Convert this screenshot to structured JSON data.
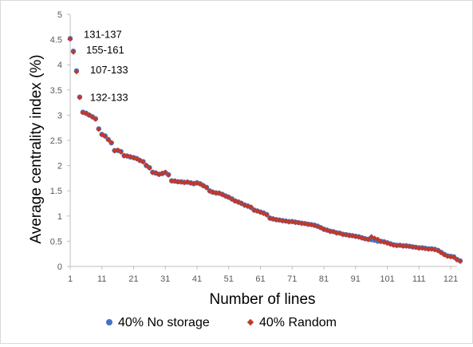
{
  "chart_data": {
    "type": "scatter",
    "xlabel": "Number  of lines",
    "ylabel": "Average centrality index (%)",
    "ylim": [
      0,
      5
    ],
    "xlim": [
      1,
      123
    ],
    "y_ticks": [
      "0",
      "0.5",
      "1",
      "1.5",
      "2",
      "2.5",
      "3",
      "3.5",
      "4",
      "4.5",
      "5"
    ],
    "x_ticks": [
      "1",
      "11",
      "21",
      "31",
      "41",
      "51",
      "61",
      "71",
      "81",
      "91",
      "101",
      "111",
      "121"
    ],
    "grid": false,
    "legend_position": "bottom",
    "annotations": [
      {
        "text": "131-137",
        "x": 1,
        "y": 4.52
      },
      {
        "text": "155-161",
        "x": 2,
        "y": 4.27
      },
      {
        "text": "107-133",
        "x": 3,
        "y": 3.88
      },
      {
        "text": "132-133",
        "x": 4,
        "y": 3.36
      }
    ],
    "series": [
      {
        "name": "40% No storage",
        "color": "#4472C4",
        "marker": "circle",
        "values": [
          4.52,
          4.27,
          3.88,
          3.36,
          3.06,
          3.04,
          3.0,
          2.97,
          2.93,
          2.73,
          2.62,
          2.59,
          2.52,
          2.45,
          2.3,
          2.3,
          2.28,
          2.2,
          2.19,
          2.17,
          2.16,
          2.14,
          2.1,
          2.08,
          2.0,
          1.96,
          1.87,
          1.85,
          1.83,
          1.84,
          1.86,
          1.82,
          1.7,
          1.69,
          1.68,
          1.68,
          1.67,
          1.67,
          1.66,
          1.64,
          1.66,
          1.64,
          1.6,
          1.57,
          1.5,
          1.47,
          1.46,
          1.45,
          1.43,
          1.4,
          1.37,
          1.34,
          1.3,
          1.28,
          1.25,
          1.22,
          1.2,
          1.17,
          1.12,
          1.1,
          1.08,
          1.06,
          1.03,
          0.96,
          0.94,
          0.93,
          0.92,
          0.91,
          0.9,
          0.89,
          0.89,
          0.88,
          0.87,
          0.86,
          0.85,
          0.84,
          0.83,
          0.82,
          0.8,
          0.77,
          0.74,
          0.72,
          0.7,
          0.69,
          0.67,
          0.66,
          0.64,
          0.63,
          0.62,
          0.61,
          0.6,
          0.59,
          0.57,
          0.55,
          0.54,
          0.53,
          0.52,
          0.5,
          0.5,
          0.49,
          0.47,
          0.45,
          0.43,
          0.42,
          0.42,
          0.41,
          0.41,
          0.4,
          0.39,
          0.38,
          0.37,
          0.37,
          0.36,
          0.35,
          0.35,
          0.34,
          0.32,
          0.28,
          0.24,
          0.21,
          0.2,
          0.19,
          0.14,
          0.11
        ]
      },
      {
        "name": "40% Random",
        "color": "#C0392B",
        "marker": "diamond",
        "values": [
          4.51,
          4.25,
          3.86,
          3.35,
          3.05,
          3.03,
          3.01,
          2.96,
          2.92,
          2.72,
          2.61,
          2.58,
          2.51,
          2.46,
          2.29,
          2.31,
          2.27,
          2.19,
          2.19,
          2.18,
          2.15,
          2.13,
          2.11,
          2.07,
          2.01,
          1.95,
          1.86,
          1.86,
          1.82,
          1.85,
          1.87,
          1.81,
          1.69,
          1.7,
          1.68,
          1.67,
          1.66,
          1.68,
          1.65,
          1.65,
          1.65,
          1.63,
          1.61,
          1.56,
          1.49,
          1.48,
          1.45,
          1.46,
          1.42,
          1.39,
          1.38,
          1.33,
          1.3,
          1.27,
          1.26,
          1.21,
          1.19,
          1.18,
          1.11,
          1.1,
          1.07,
          1.05,
          1.02,
          0.95,
          0.95,
          0.92,
          0.92,
          0.9,
          0.9,
          0.88,
          0.89,
          0.87,
          0.87,
          0.85,
          0.85,
          0.83,
          0.83,
          0.81,
          0.79,
          0.77,
          0.73,
          0.72,
          0.69,
          0.69,
          0.66,
          0.66,
          0.63,
          0.63,
          0.61,
          0.61,
          0.59,
          0.58,
          0.56,
          0.55,
          0.53,
          0.59,
          0.56,
          0.54,
          0.49,
          0.48,
          0.46,
          0.44,
          0.42,
          0.41,
          0.42,
          0.4,
          0.4,
          0.4,
          0.38,
          0.38,
          0.36,
          0.36,
          0.35,
          0.34,
          0.34,
          0.33,
          0.31,
          0.27,
          0.23,
          0.2,
          0.19,
          0.18,
          0.13,
          0.1
        ]
      }
    ]
  }
}
